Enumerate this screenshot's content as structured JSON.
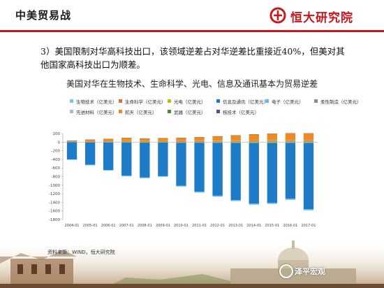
{
  "header": {
    "title": "中美贸易战",
    "logo_text": "恒大研究院",
    "accent_color": "#c8161d"
  },
  "paragraph": "3）美国限制对华高科技出口，该领域逆差占对华逆差比重接近40%，但美对其他国家高科技出口为顺差。",
  "source": "资料来源：WIND，恒大研究院",
  "watermark": "泽平宏观",
  "chart_data": {
    "type": "bar",
    "stacked": true,
    "title": "美国对华在生物技术、生命科学、光电、信息及通讯基本为贸易逆差",
    "categories": [
      "2004-01",
      "2005-01",
      "2006-01",
      "2007-01",
      "2008-01",
      "2009-01",
      "2010-01",
      "2011-01",
      "2012-01",
      "2013-01",
      "2014-01",
      "2015-01",
      "2016-01",
      "2017-01"
    ],
    "ylim": [
      -1800,
      200
    ],
    "yticks": [
      200,
      0,
      -200,
      -400,
      -600,
      -800,
      -1000,
      -1200,
      -1400,
      -1600,
      -1800
    ],
    "grid": false,
    "legend_position": "top",
    "series": [
      {
        "name": "生物技术（亿美元）",
        "color": "#7fc3ea",
        "values": [
          2,
          3,
          3,
          4,
          4,
          4,
          5,
          6,
          7,
          8,
          9,
          10,
          10,
          11
        ]
      },
      {
        "name": "生命科学（亿美元）",
        "color": "#e06b3d",
        "values": [
          8,
          10,
          11,
          13,
          14,
          14,
          15,
          17,
          18,
          19,
          21,
          23,
          23,
          25
        ]
      },
      {
        "name": "光电（亿美元）",
        "color": "#b8c400",
        "values": [
          -4,
          -6,
          -8,
          -10,
          -12,
          -11,
          -14,
          -13,
          -15,
          -17,
          -18,
          -19,
          -16,
          -17
        ]
      },
      {
        "name": "信息及通讯（亿美元）",
        "color": "#1e7bc8",
        "values": [
          -397,
          -520,
          -640,
          -770,
          -810,
          -780,
          -1000,
          -1140,
          -1230,
          -1330,
          -1410,
          -1390,
          -1300,
          -1540
        ]
      },
      {
        "name": "电子（亿美元）",
        "color": "#5eb9e8",
        "values": [
          -10,
          -12,
          -14,
          -15,
          -15,
          -13,
          -18,
          -20,
          -22,
          -24,
          -26,
          -27,
          -25,
          -28
        ]
      },
      {
        "name": "柔性制造（亿美元）",
        "color": "#8c8c8c",
        "values": [
          3,
          3,
          4,
          4,
          4,
          3,
          5,
          6,
          6,
          7,
          7,
          7,
          7,
          8
        ]
      },
      {
        "name": "先进材料（亿美元）",
        "color": "#a5bdd6",
        "values": [
          2,
          3,
          3,
          3,
          4,
          3,
          4,
          5,
          5,
          5,
          6,
          6,
          6,
          6
        ]
      },
      {
        "name": "航天（亿美元）",
        "color": "#ef8a1e",
        "values": [
          20,
          40,
          55,
          75,
          60,
          70,
          70,
          80,
          100,
          120,
          140,
          150,
          160,
          155
        ]
      },
      {
        "name": "武器（亿美元）",
        "color": "#4a8a3a",
        "values": [
          0,
          0,
          0,
          0,
          0,
          0,
          0,
          0,
          0,
          0,
          0,
          0,
          0,
          0
        ]
      },
      {
        "name": "核技术（亿美元）",
        "color": "#5a4e8a",
        "values": [
          1,
          1,
          1,
          1,
          1,
          1,
          1,
          1,
          1,
          1,
          1,
          1,
          1,
          1
        ]
      }
    ]
  }
}
